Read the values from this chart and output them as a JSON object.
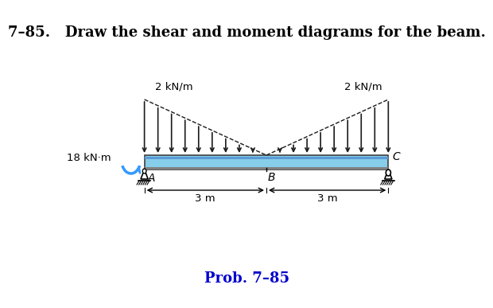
{
  "title": "7–85.   Draw the shear and moment diagrams for the beam.",
  "prob_label": "Prob. 7–85",
  "beam_label_left": "2 kN/m",
  "beam_label_right": "2 kN/m",
  "moment_label": "18 kN·m",
  "point_A": "A",
  "point_B": "B",
  "point_C": "C",
  "dist_left": "3 m",
  "dist_right": "3 m",
  "beam_color": "#87CEEB",
  "beam_color_dark": "#5B9BD5",
  "beam_outline": "#404040",
  "arrow_color": "#1a1a1a",
  "moment_arrow_color": "#3399FF",
  "bg_color": "#ffffff",
  "title_fontsize": 13,
  "prob_fontsize": 13,
  "prob_color": "#0000CC"
}
